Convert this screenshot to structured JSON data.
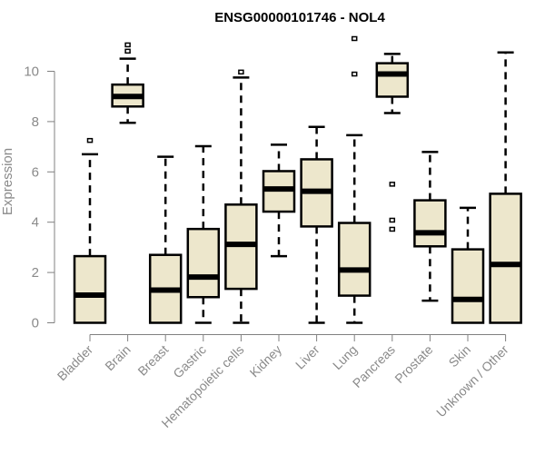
{
  "chart_data": {
    "type": "boxplot",
    "title": "ENSG00000101746 - NOL4",
    "xlabel": "",
    "ylabel": "Expression",
    "ylim": [
      0,
      11.3
    ],
    "yticks": [
      0,
      2,
      4,
      6,
      8,
      10
    ],
    "grid": false,
    "legend": "none",
    "colors": {
      "box_fill": "#ede7cc",
      "stroke": "#000000",
      "axis": "#808080",
      "label": "#8a8a8a"
    },
    "categories": [
      "Bladder",
      "Brain",
      "Breast",
      "Gastric",
      "Hematopoietic cells",
      "Kidney",
      "Liver",
      "Lung",
      "Pancreas",
      "Prostate",
      "Skin",
      "Unknown / Other"
    ],
    "boxes": [
      {
        "category": "Bladder",
        "whisker_low": 0,
        "q1": 0,
        "median": 1.1,
        "q3": 2.65,
        "whisker_high": 6.7,
        "outliers": [
          7.25
        ]
      },
      {
        "category": "Brain",
        "whisker_low": 7.95,
        "q1": 8.6,
        "median": 9.0,
        "q3": 9.47,
        "whisker_high": 10.5,
        "outliers": [
          10.8,
          11.05
        ]
      },
      {
        "category": "Breast",
        "whisker_low": 0,
        "q1": 0,
        "median": 1.3,
        "q3": 2.7,
        "whisker_high": 6.6,
        "outliers": []
      },
      {
        "category": "Gastric",
        "whisker_low": 0,
        "q1": 1.02,
        "median": 1.82,
        "q3": 3.73,
        "whisker_high": 7.02,
        "outliers": []
      },
      {
        "category": "Hematopoietic cells",
        "whisker_low": 0,
        "q1": 1.35,
        "median": 3.12,
        "q3": 4.7,
        "whisker_high": 9.75,
        "outliers": [
          9.97
        ]
      },
      {
        "category": "Kidney",
        "whisker_low": 2.65,
        "q1": 4.42,
        "median": 5.32,
        "q3": 6.03,
        "whisker_high": 7.08,
        "outliers": []
      },
      {
        "category": "Liver",
        "whisker_low": 0,
        "q1": 3.83,
        "median": 5.23,
        "q3": 6.5,
        "whisker_high": 7.79,
        "outliers": []
      },
      {
        "category": "Lung",
        "whisker_low": 0,
        "q1": 1.08,
        "median": 2.1,
        "q3": 3.97,
        "whisker_high": 7.46,
        "outliers": [
          9.89,
          11.3
        ]
      },
      {
        "category": "Pancreas",
        "whisker_low": 8.34,
        "q1": 8.99,
        "median": 9.89,
        "q3": 10.32,
        "whisker_high": 10.69,
        "outliers": [
          5.51,
          4.08,
          3.72
        ]
      },
      {
        "category": "Prostate",
        "whisker_low": 0.88,
        "q1": 3.04,
        "median": 3.58,
        "q3": 4.87,
        "whisker_high": 6.79,
        "outliers": []
      },
      {
        "category": "Skin",
        "whisker_low": 0,
        "q1": 0,
        "median": 0.93,
        "q3": 2.92,
        "whisker_high": 4.57,
        "outliers": []
      },
      {
        "category": "Unknown / Other",
        "whisker_low": 0,
        "q1": 0,
        "median": 2.32,
        "q3": 5.13,
        "whisker_high": 10.75,
        "outliers": []
      }
    ]
  }
}
